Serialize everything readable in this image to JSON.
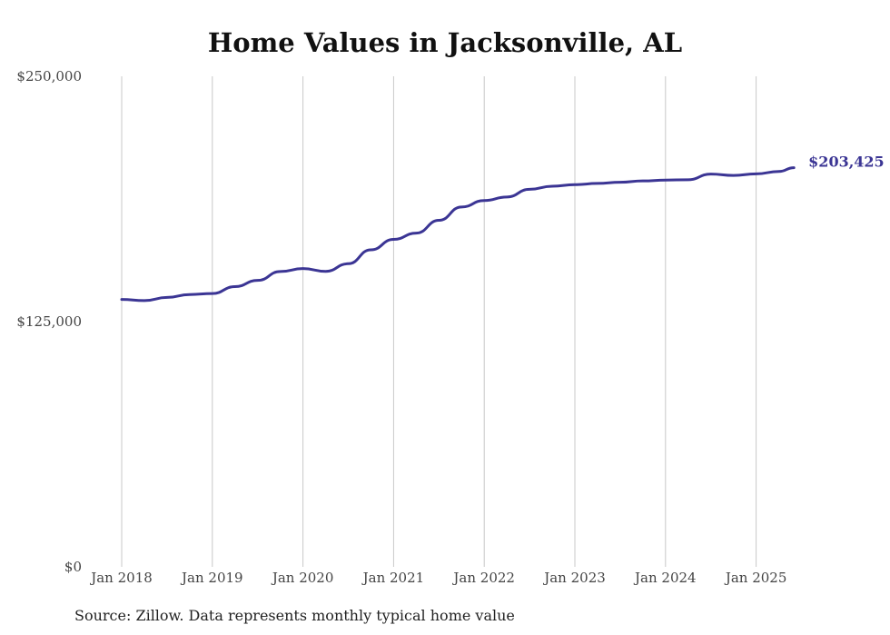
{
  "chart_data": {
    "type": "line",
    "title": "Home Values in Jacksonville, AL",
    "source": "Source: Zillow. Data represents monthly typical home value",
    "ylim": [
      0,
      250000
    ],
    "y_ticks": [
      {
        "value": 0,
        "label": "$0"
      },
      {
        "value": 125000,
        "label": "$125,000"
      },
      {
        "value": 250000,
        "label": "$250,000"
      }
    ],
    "x_ticks": [
      {
        "value": "2018-01",
        "label": "Jan 2018"
      },
      {
        "value": "2019-01",
        "label": "Jan 2019"
      },
      {
        "value": "2020-01",
        "label": "Jan 2020"
      },
      {
        "value": "2021-01",
        "label": "Jan 2021"
      },
      {
        "value": "2022-01",
        "label": "Jan 2022"
      },
      {
        "value": "2023-01",
        "label": "Jan 2023"
      },
      {
        "value": "2024-01",
        "label": "Jan 2024"
      },
      {
        "value": "2025-01",
        "label": "Jan 2025"
      }
    ],
    "grid": "vertical",
    "line_color": "#3b3594",
    "end_label": "$203,425",
    "series": [
      {
        "points": [
          [
            "2018-01",
            136300
          ],
          [
            "2018-04",
            135700
          ],
          [
            "2018-07",
            137300
          ],
          [
            "2018-10",
            138800
          ],
          [
            "2019-01",
            139300
          ],
          [
            "2019-04",
            142800
          ],
          [
            "2019-07",
            146000
          ],
          [
            "2019-10",
            150500
          ],
          [
            "2020-01",
            152000
          ],
          [
            "2020-04",
            150600
          ],
          [
            "2020-07",
            154500
          ],
          [
            "2020-10",
            161600
          ],
          [
            "2021-01",
            166900
          ],
          [
            "2021-04",
            170100
          ],
          [
            "2021-07",
            176600
          ],
          [
            "2021-10",
            183400
          ],
          [
            "2022-01",
            186700
          ],
          [
            "2022-04",
            188500
          ],
          [
            "2022-07",
            192400
          ],
          [
            "2022-10",
            194000
          ],
          [
            "2023-01",
            194800
          ],
          [
            "2023-04",
            195400
          ],
          [
            "2023-07",
            196000
          ],
          [
            "2023-10",
            196700
          ],
          [
            "2024-01",
            197100
          ],
          [
            "2024-04",
            197300
          ],
          [
            "2024-07",
            200200
          ],
          [
            "2024-10",
            199500
          ],
          [
            "2025-01",
            200300
          ],
          [
            "2025-04",
            201500
          ],
          [
            "2025-06",
            203425
          ]
        ]
      }
    ]
  }
}
